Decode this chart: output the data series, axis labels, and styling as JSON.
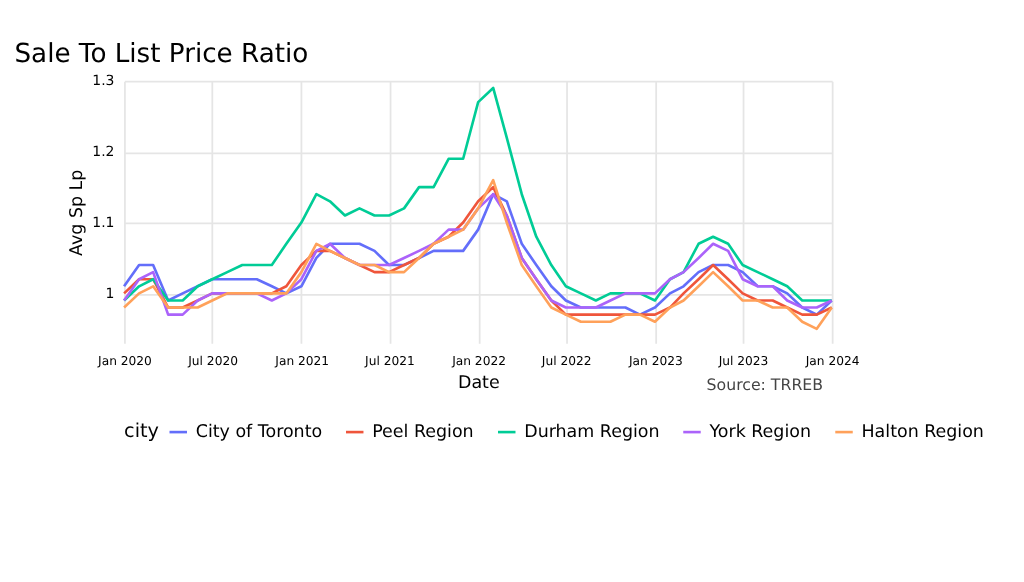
{
  "chart_data": {
    "type": "line",
    "title": "Sale To List Price Ratio",
    "xlabel": "Date",
    "ylabel": "Avg Sp Lp",
    "legend_title": "city",
    "x": [
      "2020-01",
      "2020-02",
      "2020-03",
      "2020-04",
      "2020-05",
      "2020-06",
      "2020-07",
      "2020-08",
      "2020-09",
      "2020-10",
      "2020-11",
      "2020-12",
      "2021-01",
      "2021-02",
      "2021-03",
      "2021-04",
      "2021-05",
      "2021-06",
      "2021-07",
      "2021-08",
      "2021-09",
      "2021-10",
      "2021-11",
      "2021-12",
      "2022-01",
      "2022-02",
      "2022-03",
      "2022-04",
      "2022-05",
      "2022-06",
      "2022-07",
      "2022-08",
      "2022-09",
      "2022-10",
      "2022-11",
      "2022-12",
      "2023-01",
      "2023-02",
      "2023-03",
      "2023-04",
      "2023-05",
      "2023-06",
      "2023-07",
      "2023-08",
      "2023-09",
      "2023-10",
      "2023-11",
      "2023-12",
      "2024-01"
    ],
    "series": [
      {
        "name": "City of Toronto",
        "color": "#636efa",
        "values": [
          1.01,
          1.04,
          1.04,
          0.99,
          1.0,
          1.01,
          1.02,
          1.02,
          1.02,
          1.02,
          1.01,
          1.0,
          1.01,
          1.05,
          1.07,
          1.07,
          1.07,
          1.06,
          1.04,
          1.04,
          1.05,
          1.06,
          1.06,
          1.06,
          1.09,
          1.14,
          1.13,
          1.07,
          1.04,
          1.01,
          0.99,
          0.98,
          0.98,
          0.98,
          0.98,
          0.97,
          0.98,
          1.0,
          1.01,
          1.03,
          1.04,
          1.04,
          1.03,
          1.01,
          1.01,
          1.0,
          0.98,
          0.97,
          0.99
        ]
      },
      {
        "name": "Peel Region",
        "color": "#ef553b",
        "values": [
          1.0,
          1.02,
          1.02,
          0.98,
          0.98,
          0.99,
          1.0,
          1.0,
          1.0,
          1.0,
          1.0,
          1.01,
          1.04,
          1.06,
          1.06,
          1.05,
          1.04,
          1.03,
          1.03,
          1.04,
          1.05,
          1.07,
          1.08,
          1.1,
          1.13,
          1.15,
          1.11,
          1.05,
          1.02,
          0.99,
          0.97,
          0.97,
          0.97,
          0.97,
          0.97,
          0.97,
          0.97,
          0.98,
          1.0,
          1.02,
          1.04,
          1.02,
          1.0,
          0.99,
          0.99,
          0.98,
          0.97,
          0.97,
          0.98
        ]
      },
      {
        "name": "Durham Region",
        "color": "#00cc96",
        "values": [
          0.99,
          1.01,
          1.02,
          0.99,
          0.99,
          1.01,
          1.02,
          1.03,
          1.04,
          1.04,
          1.04,
          1.07,
          1.1,
          1.14,
          1.13,
          1.11,
          1.12,
          1.11,
          1.11,
          1.12,
          1.15,
          1.15,
          1.19,
          1.19,
          1.27,
          1.29,
          1.22,
          1.14,
          1.08,
          1.04,
          1.01,
          1.0,
          0.99,
          1.0,
          1.0,
          1.0,
          0.99,
          1.02,
          1.03,
          1.07,
          1.08,
          1.07,
          1.04,
          1.03,
          1.02,
          1.01,
          0.99,
          0.99,
          0.99
        ]
      },
      {
        "name": "York Region",
        "color": "#ab63fa",
        "values": [
          0.99,
          1.02,
          1.03,
          0.97,
          0.97,
          0.99,
          1.0,
          1.0,
          1.0,
          1.0,
          0.99,
          1.0,
          1.02,
          1.06,
          1.07,
          1.05,
          1.04,
          1.04,
          1.04,
          1.05,
          1.06,
          1.07,
          1.09,
          1.09,
          1.12,
          1.14,
          1.11,
          1.05,
          1.02,
          0.99,
          0.98,
          0.98,
          0.98,
          0.99,
          1.0,
          1.0,
          1.0,
          1.02,
          1.03,
          1.05,
          1.07,
          1.06,
          1.02,
          1.01,
          1.01,
          0.99,
          0.98,
          0.98,
          0.99
        ]
      },
      {
        "name": "Halton Region",
        "color": "#ffa15a",
        "values": [
          0.98,
          1.0,
          1.01,
          0.98,
          0.98,
          0.98,
          0.99,
          1.0,
          1.0,
          1.0,
          1.0,
          1.0,
          1.03,
          1.07,
          1.06,
          1.05,
          1.04,
          1.04,
          1.03,
          1.03,
          1.05,
          1.07,
          1.08,
          1.09,
          1.12,
          1.16,
          1.1,
          1.04,
          1.01,
          0.98,
          0.97,
          0.96,
          0.96,
          0.96,
          0.97,
          0.97,
          0.96,
          0.98,
          0.99,
          1.01,
          1.03,
          1.01,
          0.99,
          0.99,
          0.98,
          0.98,
          0.96,
          0.95,
          0.98
        ]
      }
    ],
    "xlim": [
      "2020-01",
      "2024-01"
    ],
    "xticks": [
      {
        "value": "2020-01",
        "label": "Jan 2020"
      },
      {
        "value": "2020-07",
        "label": "Jul 2020"
      },
      {
        "value": "2021-01",
        "label": "Jan 2021"
      },
      {
        "value": "2021-07",
        "label": "Jul 2021"
      },
      {
        "value": "2022-01",
        "label": "Jan 2022"
      },
      {
        "value": "2022-07",
        "label": "Jul 2022"
      },
      {
        "value": "2023-01",
        "label": "Jan 2023"
      },
      {
        "value": "2023-07",
        "label": "Jul 2023"
      },
      {
        "value": "2024-01",
        "label": "Jan 2024"
      }
    ],
    "ylim": [
      0.93,
      1.3
    ],
    "yticks": [
      1,
      1.1,
      1.2,
      1.3
    ],
    "grid": true,
    "legend": "bottom",
    "marker": "none",
    "line_style": "solid",
    "annotations": [
      "Source: TRREB"
    ]
  }
}
